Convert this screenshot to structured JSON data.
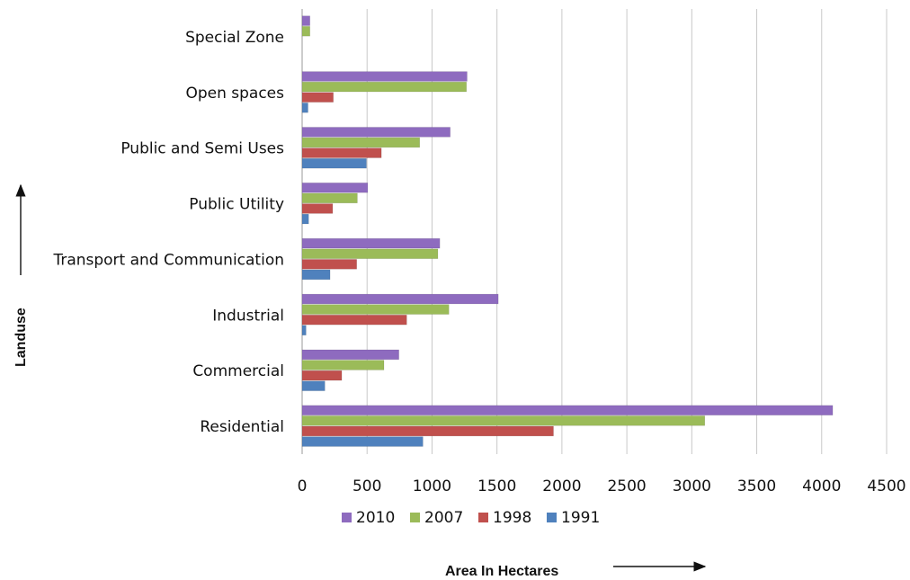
{
  "chart_data": {
    "type": "bar",
    "orientation": "horizontal",
    "categories": [
      "Special Zone",
      "Open spaces",
      "Public and Semi Uses",
      "Public Utility",
      "Transport and Communication",
      "Industrial",
      "Commercial",
      "Residential"
    ],
    "series": [
      {
        "name": "2010",
        "color": "#8e6bbf",
        "values": [
          60,
          1270,
          1140,
          505,
          1060,
          1510,
          745,
          4085
        ]
      },
      {
        "name": "2007",
        "color": "#9bbb59",
        "values": [
          60,
          1265,
          905,
          425,
          1045,
          1130,
          630,
          3100
        ]
      },
      {
        "name": "1998",
        "color": "#c0504d",
        "values": [
          0,
          240,
          610,
          235,
          420,
          805,
          305,
          1935
        ]
      },
      {
        "name": "1991",
        "color": "#4f81bd",
        "values": [
          0,
          45,
          495,
          50,
          215,
          30,
          175,
          930
        ]
      }
    ],
    "xlim": [
      0,
      4500
    ],
    "xticks": [
      0,
      500,
      1000,
      1500,
      2000,
      2500,
      3000,
      3500,
      4000,
      4500
    ],
    "xlabel": "Area In Hectares",
    "ylabel": "Landuse",
    "grid": "vertical",
    "legend_placement": "bottom"
  }
}
